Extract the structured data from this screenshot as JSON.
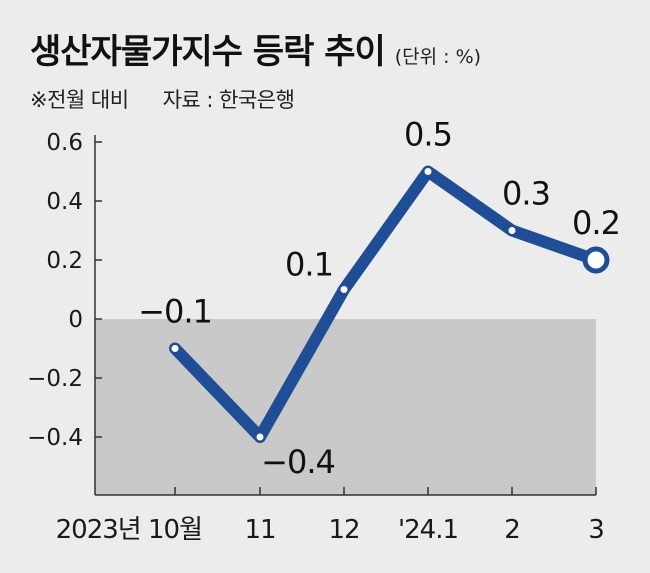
{
  "header": {
    "title": "생산자물가지수 등락 추이",
    "unit": "(단위 : %)",
    "note": "※전월 대비",
    "source": "자료 : 한국은행"
  },
  "chart_data": {
    "type": "line",
    "title": "생산자물가지수 등락 추이",
    "x": [
      "2023년 10월",
      "11",
      "12",
      "'24.1",
      "2",
      "3"
    ],
    "series": [
      {
        "values": [
          -0.1,
          -0.4,
          0.1,
          0.5,
          0.3,
          0.2
        ],
        "labels": [
          "−0.1",
          "−0.4",
          "0.1",
          "0.5",
          "0.3",
          "0.2"
        ]
      }
    ],
    "y_ticks": [
      "0.6",
      "0.4",
      "0.2",
      "0",
      "−0.2",
      "−0.4"
    ],
    "y_tick_values": [
      0.6,
      0.4,
      0.2,
      0,
      -0.2,
      -0.4
    ],
    "ylim": [
      -0.6,
      0.6
    ],
    "negative_region_shaded": true,
    "grid": false,
    "colors": {
      "line": "#1f4e96",
      "marker_fill": "#ffffff",
      "negative_area": "#c9c9c9",
      "background": "#ececec"
    }
  }
}
